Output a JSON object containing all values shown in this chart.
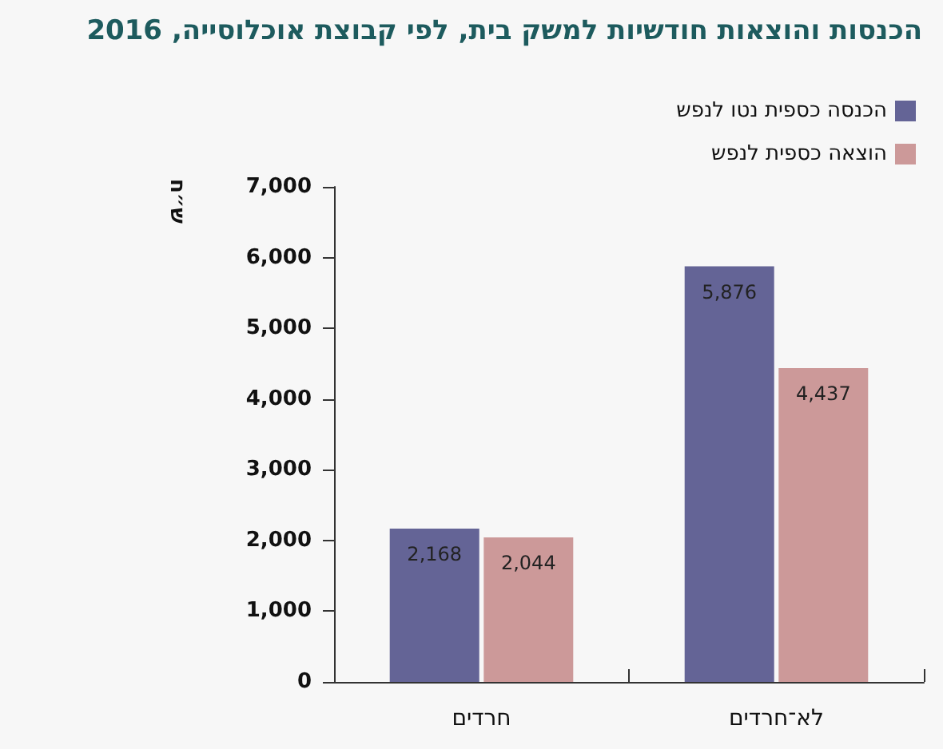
{
  "chart_data": {
    "type": "bar",
    "title": "הכנסות והוצאות חודשיות למשק בית, לפי קבוצת אוכלוסייה, 2016",
    "ylabel": "ש״ח",
    "categories": [
      "חרדים",
      "לא־חרדים"
    ],
    "series": [
      {
        "name": "הכנסה כספית נטו לנפש",
        "color": "#646496",
        "values": [
          2168,
          5876
        ],
        "value_labels": [
          "2,168",
          "5,876"
        ]
      },
      {
        "name": "הוצאה כספית לנפש",
        "color": "#cc9999",
        "values": [
          2044,
          4437
        ],
        "value_labels": [
          "2,044",
          "4,437"
        ]
      }
    ],
    "ylim": [
      0,
      7000
    ],
    "yticks": [
      0,
      {
        "value": 1000,
        "label": "1,000"
      },
      {
        "value": 2000,
        "label": "2,000"
      },
      {
        "value": 3000,
        "label": "3,000"
      },
      {
        "value": 4000,
        "label": "4,000"
      },
      {
        "value": 5000,
        "label": "5,000"
      },
      {
        "value": 6000,
        "label": "6,000"
      },
      {
        "value": 7000,
        "label": "7,000"
      }
    ],
    "grid": false,
    "legend": "top right"
  }
}
